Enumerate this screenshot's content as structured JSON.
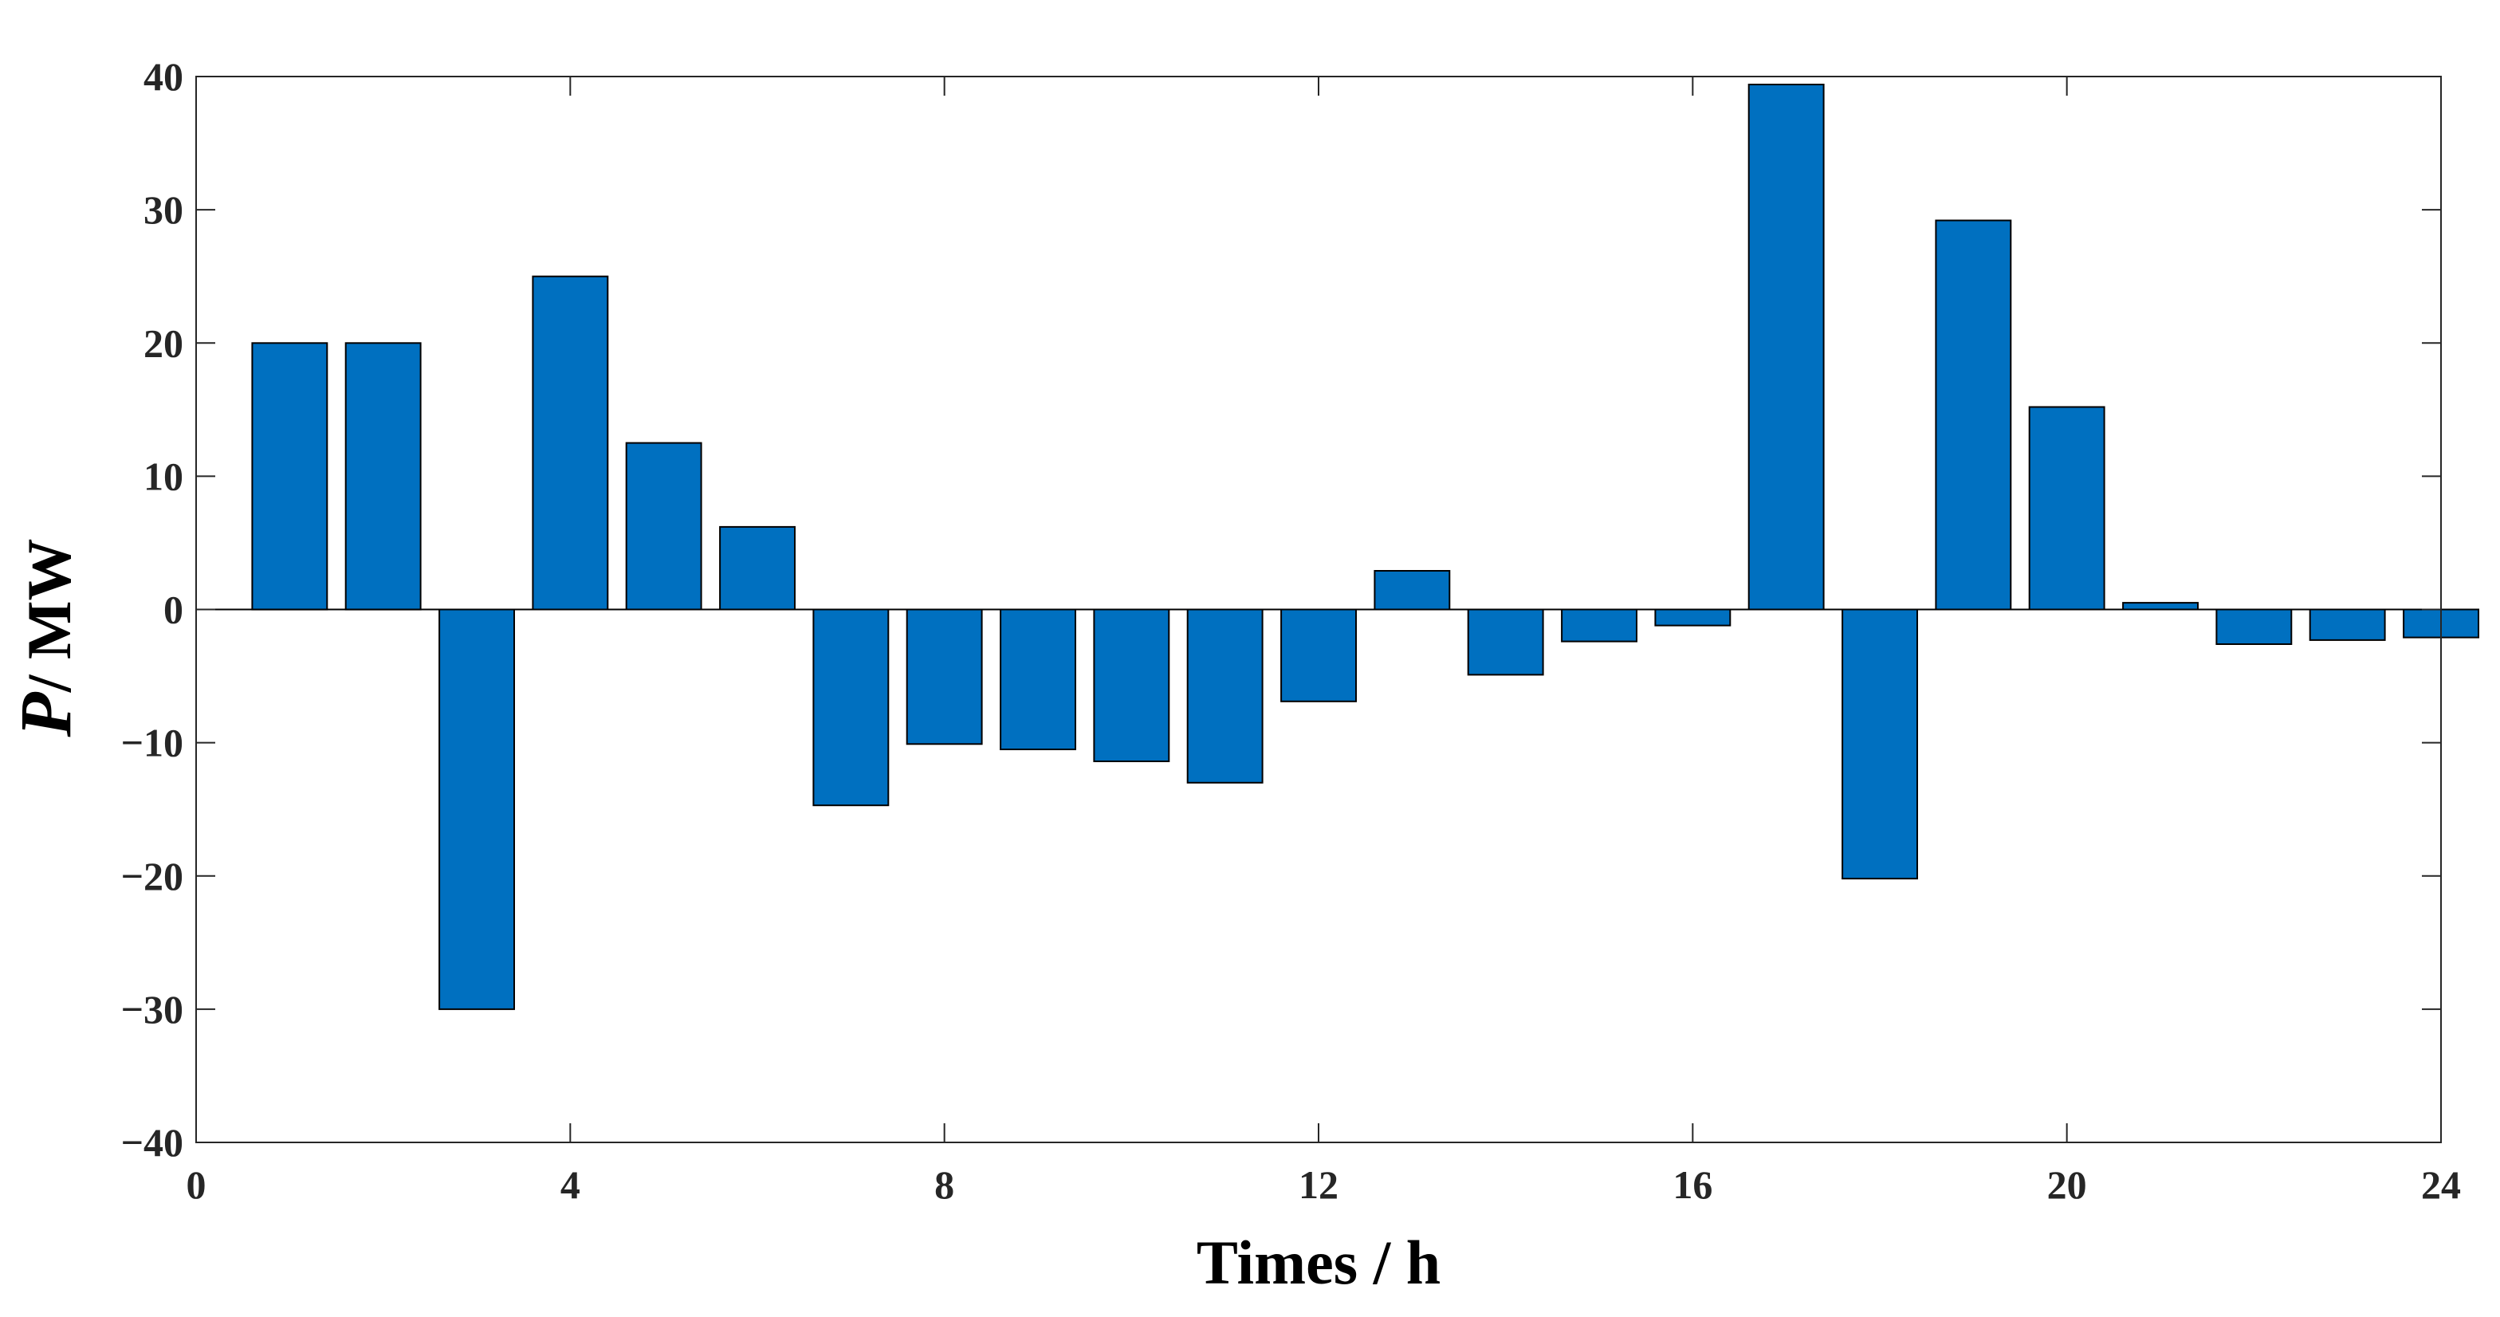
{
  "chart_data": {
    "type": "bar",
    "x": [
      1,
      2,
      3,
      4,
      5,
      6,
      7,
      8,
      9,
      10,
      11,
      12,
      13,
      14,
      15,
      16,
      17,
      18,
      19,
      20,
      21,
      22,
      23,
      24
    ],
    "values": [
      20,
      20,
      -30,
      25,
      12.5,
      6.2,
      -14.7,
      -10.1,
      -10.5,
      -11.4,
      -13.0,
      -6.9,
      2.9,
      -4.9,
      -2.4,
      -1.2,
      39.4,
      -20.2,
      29.2,
      15.2,
      0.5,
      -2.6,
      -2.3,
      -2.1
    ],
    "xlim": [
      0,
      24
    ],
    "ylim": [
      -40,
      40
    ],
    "xticks": [
      0,
      4,
      8,
      12,
      16,
      20,
      24
    ],
    "yticks": [
      -40,
      -30,
      -20,
      -10,
      0,
      10,
      20,
      30,
      40
    ],
    "xticklabels": [
      "0",
      "4",
      "8",
      "12",
      "16",
      "20",
      "24"
    ],
    "yticklabels": [
      "−40",
      "−30",
      "−20",
      "−10",
      "0",
      "10",
      "20",
      "30",
      "40"
    ],
    "xlabel": "Times / h",
    "ylabel": {
      "var": "P",
      "rest": "/  MW"
    },
    "bar_color": "#0070C0",
    "grid": false,
    "box": true
  }
}
